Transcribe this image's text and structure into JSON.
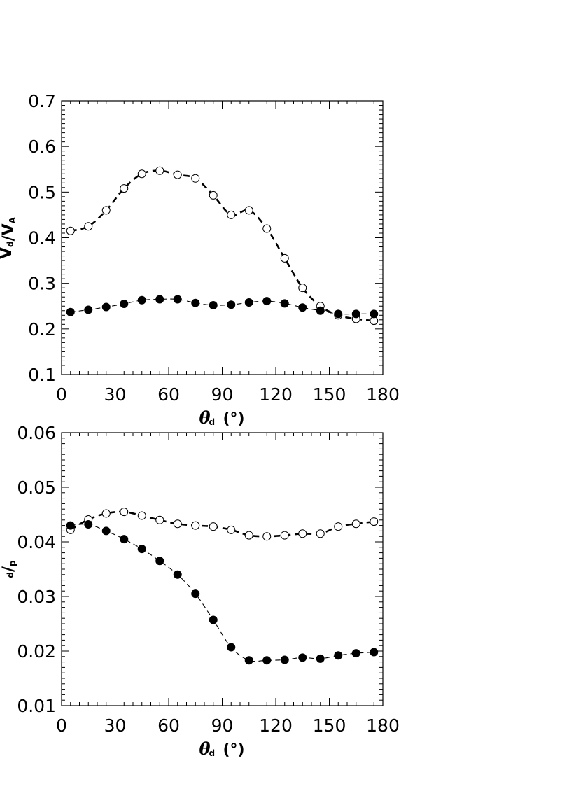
{
  "chart_data": [
    {
      "type": "line",
      "xlabel": {
        "symbol": "θ",
        "subscript": "d",
        "unit": "(°)"
      },
      "ylabel": {
        "text": "V",
        "subscript": "d",
        "separator": "/V",
        "subscript2": "A"
      },
      "xlim": [
        0,
        180
      ],
      "ylim": [
        0.1,
        0.7
      ],
      "xticks": [
        0,
        30,
        60,
        90,
        120,
        150,
        180
      ],
      "yticks": [
        0.1,
        0.2,
        0.3,
        0.4,
        0.5,
        0.6,
        0.7
      ],
      "x": [
        5,
        15,
        25,
        35,
        45,
        55,
        65,
        75,
        85,
        95,
        105,
        115,
        125,
        135,
        145,
        155,
        165,
        175
      ],
      "series": [
        {
          "marker": "open-circle",
          "line": "thick-dashed",
          "values": [
            0.415,
            0.425,
            0.46,
            0.508,
            0.54,
            0.547,
            0.538,
            0.53,
            0.493,
            0.45,
            0.46,
            0.42,
            0.355,
            0.29,
            0.25,
            0.23,
            0.222,
            0.218
          ]
        },
        {
          "marker": "filled-circle",
          "line": "thin-dashed",
          "values": [
            0.237,
            0.242,
            0.248,
            0.255,
            0.263,
            0.265,
            0.265,
            0.257,
            0.252,
            0.253,
            0.258,
            0.261,
            0.256,
            0.247,
            0.24,
            0.233,
            0.233,
            0.233
          ]
        }
      ]
    },
    {
      "type": "line",
      "xlabel": {
        "symbol": "θ",
        "subscript": "d",
        "unit": "(°)"
      },
      "ylabel": {
        "text": "",
        "subscript": "d",
        "separator": "/",
        "subscript2": "p"
      },
      "xlim": [
        0,
        180
      ],
      "ylim": [
        0.01,
        0.06
      ],
      "xticks": [
        0,
        30,
        60,
        90,
        120,
        150,
        180
      ],
      "yticks": [
        0.01,
        0.02,
        0.03,
        0.04,
        0.05,
        0.06
      ],
      "x": [
        5,
        15,
        25,
        35,
        45,
        55,
        65,
        75,
        85,
        95,
        105,
        115,
        125,
        135,
        145,
        155,
        165,
        175
      ],
      "series": [
        {
          "marker": "open-circle",
          "line": "thick-dashed",
          "values": [
            0.0422,
            0.0441,
            0.0452,
            0.0455,
            0.0448,
            0.044,
            0.0433,
            0.043,
            0.0428,
            0.0422,
            0.0412,
            0.041,
            0.0412,
            0.0415,
            0.0415,
            0.0428,
            0.0433,
            0.0437
          ]
        },
        {
          "marker": "filled-circle",
          "line": "thin-dashed",
          "values": [
            0.043,
            0.0432,
            0.042,
            0.0405,
            0.0387,
            0.0365,
            0.034,
            0.0305,
            0.0257,
            0.0207,
            0.0183,
            0.0183,
            0.0184,
            0.0188,
            0.0186,
            0.0192,
            0.0196,
            0.0198
          ]
        }
      ]
    }
  ]
}
